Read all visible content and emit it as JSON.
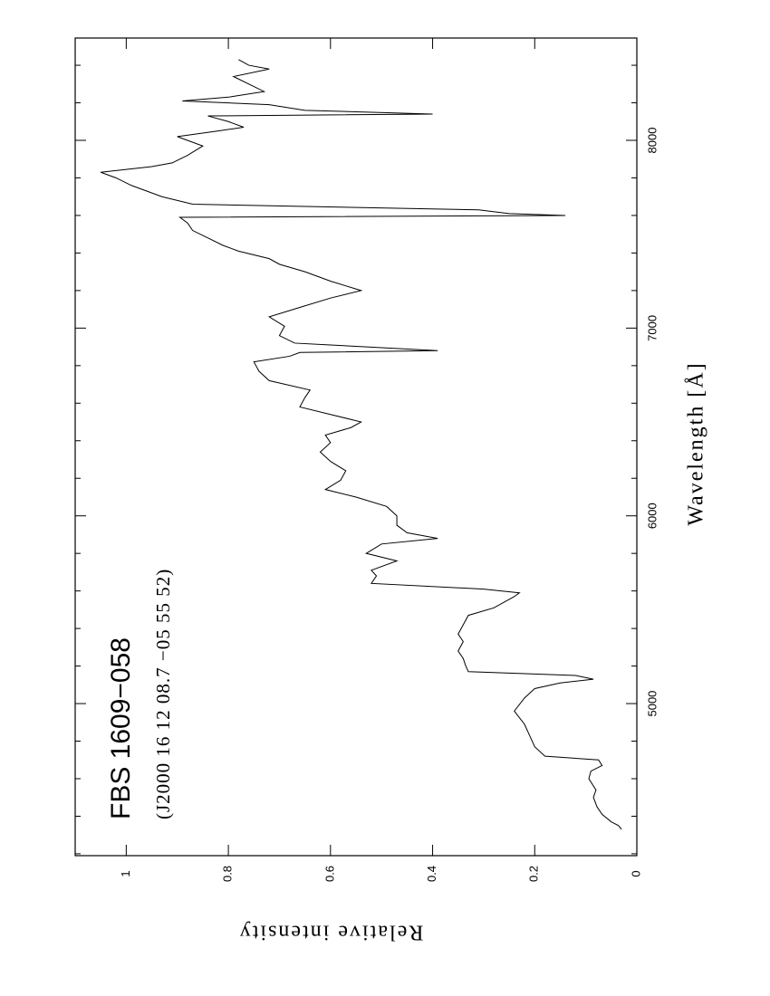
{
  "chart_data": {
    "type": "line",
    "title": "FBS 1609−058",
    "subtitle": "(J2000 16 12 08.7 −05 55 52)",
    "x_label": "Wavelength [Å]",
    "y_label": "Relative intensity",
    "x": [
      4330,
      4350,
      4370,
      4410,
      4450,
      4500,
      4540,
      4600,
      4640,
      4670,
      4700,
      4720,
      4770,
      4830,
      4890,
      4960,
      5030,
      5080,
      5110,
      5130,
      5150,
      5170,
      5200,
      5240,
      5280,
      5330,
      5370,
      5420,
      5470,
      5510,
      5540,
      5570,
      5590,
      5610,
      5640,
      5680,
      5710,
      5760,
      5800,
      5850,
      5880,
      5910,
      5950,
      6000,
      6050,
      6100,
      6140,
      6190,
      6240,
      6290,
      6340,
      6390,
      6430,
      6470,
      6500,
      6540,
      6580,
      6630,
      6670,
      6720,
      6770,
      6820,
      6850,
      6870,
      6880,
      6920,
      6960,
      7010,
      7060,
      7110,
      7160,
      7200,
      7250,
      7300,
      7340,
      7370,
      7410,
      7440,
      7480,
      7520,
      7560,
      7590,
      7600,
      7610,
      7630,
      7660,
      7700,
      7760,
      7800,
      7830,
      7860,
      7880,
      7920,
      7970,
      8020,
      8050,
      8070,
      8100,
      8130,
      8140,
      8160,
      8190,
      8210,
      8230,
      8260,
      8300,
      8340,
      8380,
      8400,
      8430
    ],
    "values": [
      0.03,
      0.036,
      0.05,
      0.068,
      0.078,
      0.085,
      0.08,
      0.094,
      0.09,
      0.068,
      0.075,
      0.18,
      0.2,
      0.21,
      0.22,
      0.24,
      0.22,
      0.2,
      0.15,
      0.085,
      0.12,
      0.33,
      0.335,
      0.34,
      0.35,
      0.34,
      0.35,
      0.34,
      0.33,
      0.28,
      0.26,
      0.24,
      0.23,
      0.3,
      0.52,
      0.51,
      0.52,
      0.47,
      0.53,
      0.5,
      0.39,
      0.45,
      0.47,
      0.47,
      0.49,
      0.55,
      0.61,
      0.58,
      0.57,
      0.6,
      0.62,
      0.6,
      0.61,
      0.56,
      0.54,
      0.6,
      0.66,
      0.65,
      0.64,
      0.72,
      0.74,
      0.75,
      0.68,
      0.66,
      0.39,
      0.67,
      0.7,
      0.69,
      0.72,
      0.66,
      0.6,
      0.54,
      0.6,
      0.65,
      0.7,
      0.72,
      0.78,
      0.81,
      0.84,
      0.87,
      0.88,
      0.895,
      0.14,
      0.25,
      0.31,
      0.87,
      0.93,
      0.99,
      1.02,
      1.05,
      0.95,
      0.91,
      0.88,
      0.85,
      0.9,
      0.82,
      0.77,
      0.8,
      0.84,
      0.4,
      0.65,
      0.72,
      0.89,
      0.8,
      0.73,
      0.76,
      0.79,
      0.72,
      0.76,
      0.78
    ],
    "color": "#000000",
    "xlim": [
      4190,
      8545
    ],
    "xticks": [
      5000,
      6000,
      7000,
      8000
    ],
    "xminorticks": [
      4200,
      4400,
      4600,
      4800,
      5200,
      5400,
      5600,
      5800,
      6200,
      6400,
      6600,
      6800,
      7200,
      7400,
      7600,
      7800,
      8200,
      8400
    ],
    "ylim": [
      0,
      1.1
    ],
    "yticks": [
      0,
      0.2,
      0.4,
      0.6,
      0.8,
      1
    ]
  }
}
